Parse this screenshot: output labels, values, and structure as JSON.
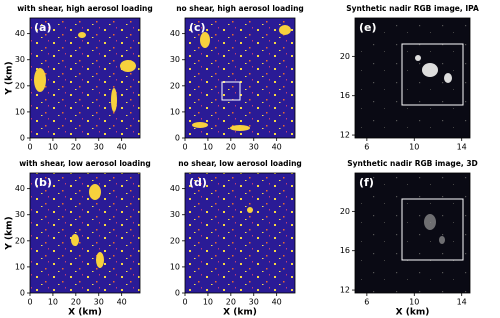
{
  "chart_data": [
    {
      "type": "image",
      "title": "with shear, high aerosol loading",
      "label": "(a)",
      "ylabel": "Y (km)",
      "xlim": [
        0,
        48
      ],
      "ylim": [
        0,
        46
      ],
      "xticks": [
        0,
        10,
        20,
        30,
        40
      ],
      "yticks": [
        0,
        10,
        20,
        30,
        40
      ]
    },
    {
      "type": "image",
      "title": "no shear, high aerosol loading",
      "label": "(c)",
      "xlim": [
        0,
        48
      ],
      "ylim": [
        0,
        46
      ],
      "xticks": [
        0,
        10,
        20,
        30,
        40
      ],
      "yticks": [
        0,
        10,
        20,
        30,
        40
      ]
    },
    {
      "type": "image",
      "title": "Synthetic nadir RGB image, IPA",
      "label": "(e)",
      "xlim": [
        5,
        14.7
      ],
      "ylim": [
        11.7,
        23.9
      ],
      "xticks": [
        6,
        10,
        14
      ],
      "yticks": [
        12,
        16,
        20
      ]
    },
    {
      "type": "image",
      "title": "with shear, low aerosol loading",
      "label": "(b)",
      "ylabel": "Y (km)",
      "xlabel": "X (km)",
      "xlim": [
        0,
        48
      ],
      "ylim": [
        0,
        46
      ],
      "xticks": [
        0,
        10,
        20,
        30,
        40
      ],
      "yticks": [
        0,
        10,
        20,
        30,
        40
      ]
    },
    {
      "type": "image",
      "title": "no shear, low aerosol loading",
      "label": "(d)",
      "xlabel": "X (km)",
      "xlim": [
        0,
        48
      ],
      "ylim": [
        0,
        46
      ],
      "xticks": [
        0,
        10,
        20,
        30,
        40
      ],
      "yticks": [
        0,
        10,
        20,
        30,
        40
      ]
    },
    {
      "type": "image",
      "title": "Synthetic nadir RGB image, 3D",
      "label": "(f)",
      "xlabel": "X (km)",
      "xlim": [
        5,
        14.7
      ],
      "ylim": [
        11.7,
        23.9
      ],
      "xticks": [
        6,
        10,
        14
      ],
      "yticks": [
        12,
        16,
        20
      ]
    }
  ]
}
